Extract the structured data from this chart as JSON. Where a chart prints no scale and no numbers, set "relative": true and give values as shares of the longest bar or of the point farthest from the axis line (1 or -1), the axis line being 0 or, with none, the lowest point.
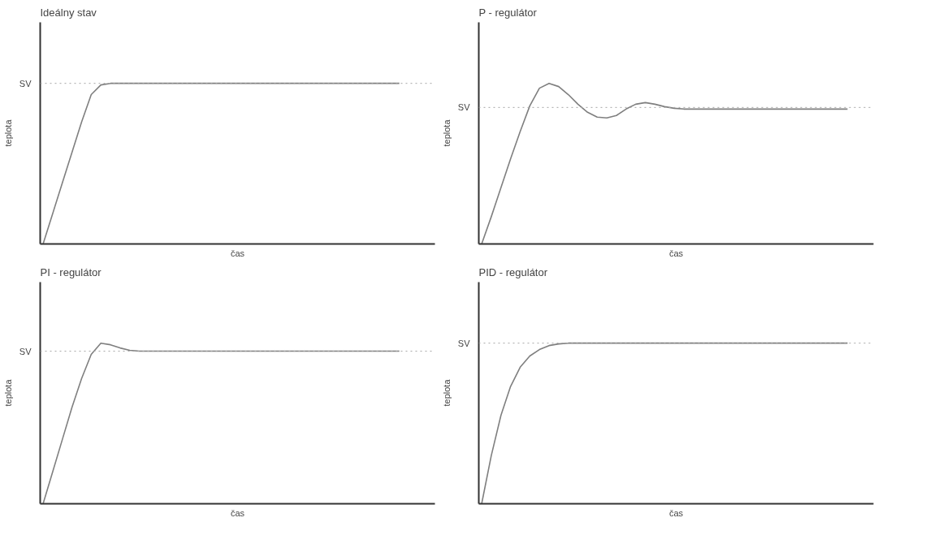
{
  "chart_data": [
    {
      "type": "line",
      "title": "Ideálny stav",
      "xlabel": "čas",
      "ylabel": "teplota",
      "relative": true,
      "tick_labels": "y",
      "line_style": "solid",
      "categories": [
        null,
        null,
        null,
        null,
        null,
        null,
        null,
        null,
        null,
        null,
        null,
        null,
        null,
        null,
        null,
        null,
        null,
        null,
        null,
        null,
        null,
        null,
        null,
        null,
        null,
        null,
        null,
        null,
        null,
        null,
        null,
        null,
        null,
        null,
        null,
        null,
        null,
        null,
        null,
        null,
        null
      ],
      "series": [
        {
          "color": "#7f7f7f",
          "values": [
            0,
            0.19,
            0.38,
            0.57,
            0.76,
            0.93,
            0.99,
            1,
            1,
            1,
            1,
            1,
            1,
            1,
            1,
            1,
            1,
            1,
            1,
            1,
            1,
            1,
            1,
            1,
            1,
            1,
            1,
            1,
            1,
            1,
            1,
            1,
            1,
            1,
            1,
            1,
            1,
            1,
            null,
            null,
            null
          ]
        }
      ],
      "ref_lines": [
        {
          "axis": "y",
          "value": 1,
          "label": "SV",
          "color": "#a6a6a6",
          "line_style": "dotted"
        }
      ]
    },
    {
      "type": "line",
      "title": "P - regulátor",
      "xlabel": "čas",
      "ylabel": "teplota",
      "relative": true,
      "tick_labels": "y",
      "line_style": "solid",
      "categories": [
        null,
        null,
        null,
        null,
        null,
        null,
        null,
        null,
        null,
        null,
        null,
        null,
        null,
        null,
        null,
        null,
        null,
        null,
        null,
        null,
        null,
        null,
        null,
        null,
        null,
        null,
        null,
        null,
        null,
        null,
        null,
        null,
        null,
        null,
        null,
        null,
        null,
        null,
        null,
        null,
        null
      ],
      "series": [
        {
          "color": "#7f7f7f",
          "values": [
            0,
            0.17,
            0.35,
            0.53,
            0.7,
            0.86,
            0.97,
            1,
            0.98,
            0.93,
            0.87,
            0.82,
            0.79,
            0.785,
            0.8,
            0.84,
            0.87,
            0.88,
            0.87,
            0.855,
            0.845,
            0.84,
            0.84,
            0.84,
            0.84,
            0.84,
            0.84,
            0.84,
            0.84,
            0.84,
            0.84,
            0.84,
            0.84,
            0.84,
            0.84,
            0.84,
            0.84,
            0.84,
            0.84,
            null,
            null
          ]
        }
      ],
      "ref_lines": [
        {
          "axis": "y",
          "value": 0.85,
          "label": "SV",
          "color": "#a6a6a6",
          "line_style": "dotted"
        }
      ]
    },
    {
      "type": "line",
      "title": "PI - regulátor",
      "xlabel": "čas",
      "ylabel": "teplota",
      "relative": true,
      "tick_labels": "y",
      "line_style": "solid",
      "categories": [
        null,
        null,
        null,
        null,
        null,
        null,
        null,
        null,
        null,
        null,
        null,
        null,
        null,
        null,
        null,
        null,
        null,
        null,
        null,
        null,
        null,
        null,
        null,
        null,
        null,
        null,
        null,
        null,
        null,
        null,
        null,
        null,
        null,
        null,
        null,
        null,
        null,
        null,
        null,
        null,
        null
      ],
      "series": [
        {
          "color": "#7f7f7f",
          "values": [
            0,
            0.2,
            0.4,
            0.6,
            0.78,
            0.93,
            1,
            0.99,
            0.97,
            0.955,
            0.95,
            0.95,
            0.95,
            0.95,
            0.95,
            0.95,
            0.95,
            0.95,
            0.95,
            0.95,
            0.95,
            0.95,
            0.95,
            0.95,
            0.95,
            0.95,
            0.95,
            0.95,
            0.95,
            0.95,
            0.95,
            0.95,
            0.95,
            0.95,
            0.95,
            0.95,
            0.95,
            0.95,
            null,
            null,
            null
          ]
        }
      ],
      "ref_lines": [
        {
          "axis": "y",
          "value": 0.95,
          "label": "SV",
          "color": "#a6a6a6",
          "line_style": "dotted"
        }
      ]
    },
    {
      "type": "line",
      "title": "PID - regulátor",
      "xlabel": "čas",
      "ylabel": "teplota",
      "relative": true,
      "tick_labels": "y",
      "line_style": "solid",
      "categories": [
        null,
        null,
        null,
        null,
        null,
        null,
        null,
        null,
        null,
        null,
        null,
        null,
        null,
        null,
        null,
        null,
        null,
        null,
        null,
        null,
        null,
        null,
        null,
        null,
        null,
        null,
        null,
        null,
        null,
        null,
        null,
        null,
        null,
        null,
        null,
        null,
        null,
        null,
        null,
        null,
        null
      ],
      "series": [
        {
          "color": "#7f7f7f",
          "values": [
            0,
            0.3,
            0.55,
            0.73,
            0.85,
            0.92,
            0.96,
            0.985,
            0.995,
            1,
            1,
            1,
            1,
            1,
            1,
            1,
            1,
            1,
            1,
            1,
            1,
            1,
            1,
            1,
            1,
            1,
            1,
            1,
            1,
            1,
            1,
            1,
            1,
            1,
            1,
            1,
            1,
            1,
            1,
            null,
            null
          ]
        }
      ],
      "ref_lines": [
        {
          "axis": "y",
          "value": 1,
          "label": "SV",
          "color": "#a6a6a6",
          "line_style": "dotted"
        }
      ]
    }
  ]
}
